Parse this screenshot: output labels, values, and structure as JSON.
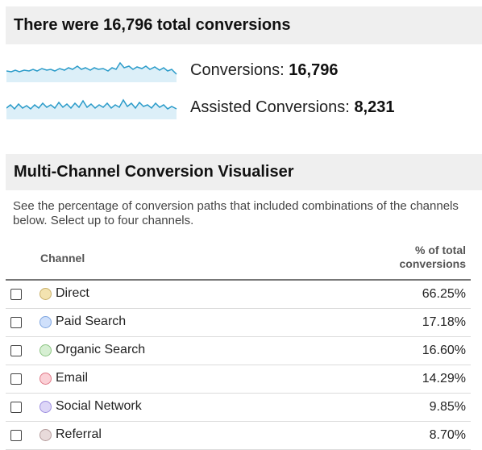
{
  "summary": {
    "title": "There were 16,796 total conversions",
    "metrics": [
      {
        "label": "Conversions:",
        "value": "16,796",
        "sparkline_color": "#2a9bc9",
        "fill_color": "#dceff8"
      },
      {
        "label": "Assisted Conversions:",
        "value": "8,231",
        "sparkline_color": "#2a9bc9",
        "fill_color": "#dceff8"
      }
    ]
  },
  "visualiser": {
    "title": "Multi-Channel Conversion Visualiser",
    "description": "See the percentage of conversion paths that included combinations of the channels below. Select up to four channels.",
    "columns": {
      "channel": "Channel",
      "percent_line1": "% of total",
      "percent_line2": "conversions"
    },
    "rows": [
      {
        "channel": "Direct",
        "percent": "66.25%",
        "color": "#f3e3b0",
        "border": "#c9b06a",
        "checked": false
      },
      {
        "channel": "Paid Search",
        "percent": "17.18%",
        "color": "#cfe0fb",
        "border": "#7fa6e0",
        "checked": false
      },
      {
        "channel": "Organic Search",
        "percent": "16.60%",
        "color": "#d6efd2",
        "border": "#8cc483",
        "checked": false
      },
      {
        "channel": "Email",
        "percent": "14.29%",
        "color": "#fbd0d6",
        "border": "#e07a88",
        "checked": false
      },
      {
        "channel": "Social Network",
        "percent": "9.85%",
        "color": "#ddd6f7",
        "border": "#9d8ee0",
        "checked": false
      },
      {
        "channel": "Referral",
        "percent": "8.70%",
        "color": "#e8dada",
        "border": "#b59c9c",
        "checked": false
      }
    ]
  }
}
